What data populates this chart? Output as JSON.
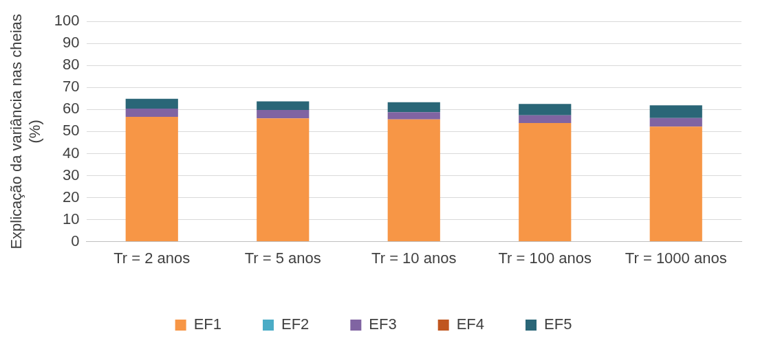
{
  "chart_data": {
    "type": "bar",
    "ylabel": "Explicação da variância nas cheias (%)",
    "categories": [
      "Tr = 2 anos",
      "Tr = 5 anos",
      "Tr = 10 anos",
      "Tr = 100 anos",
      "Tr = 1000 anos"
    ],
    "stacked": true,
    "series": [
      {
        "name": "EF1",
        "color": "#f79646",
        "values": [
          56.7,
          56.0,
          55.5,
          53.9,
          52.2
        ]
      },
      {
        "name": "EF2",
        "color": "#4bacc6",
        "values": [
          0,
          0,
          0,
          0,
          0
        ]
      },
      {
        "name": "EF3",
        "color": "#8064a2",
        "values": [
          3.7,
          3.8,
          3.3,
          3.5,
          3.9
        ]
      },
      {
        "name": "EF4",
        "color": "#c0561f",
        "values": [
          0,
          0,
          0,
          0,
          0
        ]
      },
      {
        "name": "EF5",
        "color": "#2a6677",
        "values": [
          4.5,
          3.9,
          4.5,
          5.1,
          5.8
        ]
      }
    ],
    "ylim": [
      0,
      100
    ],
    "yticks": [
      0,
      10,
      20,
      30,
      40,
      50,
      60,
      70,
      80,
      90,
      100
    ],
    "grid": "y",
    "legend": "bottom"
  }
}
